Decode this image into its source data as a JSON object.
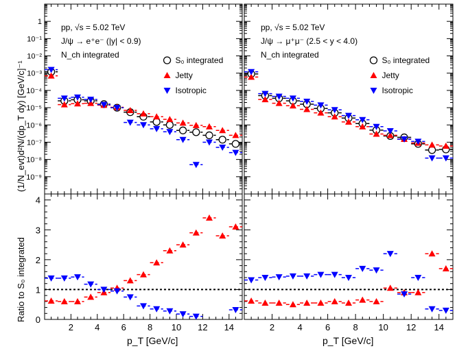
{
  "figure": {
    "ylabel_top": "(1/N_evt)d²N/(dp_T dy) [GeV/c]⁻¹",
    "ylabel_bottom": "Ratio to S₀ integrated",
    "xlabel": "p_T [GeV/c]"
  },
  "colors": {
    "integrated": "#000000",
    "jetty": "#ff0000",
    "isotropic": "#0000ff"
  },
  "legend": {
    "integrated": "S₀ integrated",
    "jetty": "Jetty",
    "isotropic": "Isotropic"
  },
  "chart_data": [
    {
      "type": "scatter",
      "panel": "top-left",
      "annotations": [
        "pp, √s = 5.02 TeV",
        "J/ψ → e⁺e⁻ (|y| < 0.9)",
        "N_ch integrated"
      ],
      "x_ticks": [
        2,
        4,
        6,
        8,
        10,
        12,
        14
      ],
      "y_ticks_labels": [
        "10⁻⁹",
        "10⁻⁸",
        "10⁻⁷",
        "10⁻⁶",
        "10⁻⁵",
        "10⁻⁴",
        "10⁻³",
        "10⁻²",
        "10⁻¹",
        "1"
      ],
      "xlim": [
        0,
        15
      ],
      "ylim": [
        1e-10,
        10
      ],
      "yscale": "log",
      "series": [
        {
          "name": "S₀ integrated",
          "marker": "open-circle",
          "x": [
            0.5,
            1.5,
            2.5,
            3.5,
            4.5,
            5.5,
            6.5,
            7.5,
            8.5,
            9.5,
            10.5,
            11.5,
            12.5,
            13.5,
            14.5
          ],
          "y": [
            0.0012,
            2.5e-05,
            2.9e-05,
            2.5e-05,
            1.6e-05,
            1e-05,
            5.5e-06,
            3e-06,
            1.5e-06,
            1e-06,
            4.8e-07,
            3.8e-07,
            2.5e-07,
            1.4e-07,
            8e-08
          ]
        },
        {
          "name": "Jetty",
          "marker": "triangle-up",
          "x": [
            0.5,
            1.5,
            2.5,
            3.5,
            4.5,
            5.5,
            6.5,
            7.5,
            8.5,
            9.5,
            10.5,
            11.5,
            12.5,
            13.5,
            14.5
          ],
          "y": [
            0.0007,
            1.5e-05,
            1.7e-05,
            1.8e-05,
            1.4e-05,
            1.05e-05,
            7e-06,
            4.5e-06,
            3e-06,
            2.1e-06,
            1.3e-06,
            9.5e-07,
            8e-07,
            4.8e-07,
            2.5e-07
          ]
        },
        {
          "name": "Isotropic",
          "marker": "triangle-down",
          "x": [
            0.5,
            1.5,
            2.5,
            3.5,
            4.5,
            5.5,
            6.5,
            7.5,
            8.5,
            9.5,
            10.5,
            11.5,
            12.5,
            13.5,
            14.5
          ],
          "y": [
            0.0016,
            3.5e-05,
            4e-05,
            3e-05,
            1.5e-05,
            1e-05,
            1.4e-06,
            1e-06,
            6e-07,
            4e-07,
            1.4e-07,
            5e-09,
            1e-07,
            5e-08,
            2.5e-08
          ]
        }
      ]
    },
    {
      "type": "scatter",
      "panel": "top-right",
      "annotations": [
        "pp, √s = 5.02 TeV",
        "J/ψ → μ⁺μ⁻ (2.5 < y < 4.0)",
        "N_ch integrated"
      ],
      "x_ticks": [
        2,
        4,
        6,
        8,
        10,
        12,
        14
      ],
      "xlim": [
        0,
        15
      ],
      "ylim": [
        1e-10,
        10
      ],
      "yscale": "log",
      "series": [
        {
          "name": "S₀ integrated",
          "marker": "open-circle",
          "x": [
            0.5,
            1.5,
            2.5,
            3.5,
            4.5,
            5.5,
            6.5,
            7.5,
            8.5,
            9.5,
            10.5,
            11.5,
            12.5,
            13.5,
            14.5
          ],
          "y": [
            0.0009,
            5e-05,
            3.5e-05,
            2.5e-05,
            1.6e-05,
            9e-06,
            5e-06,
            2.5e-06,
            1.2e-06,
            5e-07,
            2.3e-07,
            1.9e-07,
            8e-08,
            3.5e-08,
            3.8e-08
          ]
        },
        {
          "name": "Jetty",
          "marker": "triangle-up",
          "x": [
            0.5,
            1.5,
            2.5,
            3.5,
            4.5,
            5.5,
            6.5,
            7.5,
            8.5,
            9.5,
            10.5,
            11.5,
            12.5,
            13.5,
            14.5
          ],
          "y": [
            0.0006,
            3e-05,
            1.8e-05,
            1.3e-05,
            8e-06,
            5e-06,
            3e-06,
            1.5e-06,
            8e-07,
            3e-07,
            2.5e-07,
            1.5e-07,
            9e-08,
            7e-08,
            6e-08
          ]
        },
        {
          "name": "Isotropic",
          "marker": "triangle-down",
          "x": [
            0.5,
            1.5,
            2.5,
            3.5,
            4.5,
            5.5,
            6.5,
            7.5,
            8.5,
            9.5,
            10.5,
            11.5,
            12.5,
            13.5,
            14.5
          ],
          "y": [
            0.0012,
            6.5e-05,
            4.5e-05,
            3.5e-05,
            2.3e-05,
            1.4e-05,
            7.5e-06,
            3.5e-06,
            2e-06,
            8e-07,
            4.5e-07,
            1.5e-07,
            1.1e-07,
            1.2e-08,
            1.2e-08
          ]
        }
      ]
    },
    {
      "type": "scatter",
      "panel": "bottom-left",
      "x_ticks": [
        2,
        4,
        6,
        8,
        10,
        12,
        14
      ],
      "y_ticks": [
        0,
        1,
        2,
        3,
        4
      ],
      "xlim": [
        0,
        15
      ],
      "ylim": [
        0,
        4.2
      ],
      "reference_line": 1,
      "series": [
        {
          "name": "Jetty",
          "marker": "triangle-up",
          "x": [
            0.5,
            1.5,
            2.5,
            3.5,
            4.5,
            5.5,
            6.5,
            7.5,
            8.5,
            9.5,
            10.5,
            11.5,
            12.5,
            13.5,
            14.5
          ],
          "y": [
            0.62,
            0.6,
            0.6,
            0.75,
            0.9,
            1.05,
            1.3,
            1.5,
            1.9,
            2.3,
            2.5,
            2.9,
            3.4,
            2.8,
            3.1
          ]
        },
        {
          "name": "Isotropic",
          "marker": "triangle-down",
          "x": [
            0.5,
            1.5,
            2.5,
            3.5,
            4.5,
            5.5,
            6.5,
            7.5,
            8.5,
            9.5,
            10.5,
            11.5,
            12.5,
            13.5,
            14.5
          ],
          "y": [
            1.38,
            1.38,
            1.42,
            1.18,
            1.0,
            0.95,
            0.75,
            0.45,
            0.35,
            0.28,
            0.18,
            0.1,
            null,
            null,
            0.32
          ]
        }
      ]
    },
    {
      "type": "scatter",
      "panel": "bottom-right",
      "x_ticks": [
        2,
        4,
        6,
        8,
        10,
        12,
        14
      ],
      "xlim": [
        0,
        15
      ],
      "ylim": [
        0,
        4.2
      ],
      "reference_line": 1,
      "series": [
        {
          "name": "Jetty",
          "marker": "triangle-up",
          "x": [
            0.5,
            1.5,
            2.5,
            3.5,
            4.5,
            5.5,
            6.5,
            7.5,
            8.5,
            9.5,
            10.5,
            11.5,
            12.5,
            13.5,
            14.5
          ],
          "y": [
            0.62,
            0.55,
            0.55,
            0.5,
            0.55,
            0.55,
            0.6,
            0.55,
            0.65,
            0.6,
            1.05,
            0.9,
            0.9,
            2.2,
            1.7
          ]
        },
        {
          "name": "Isotropic",
          "marker": "triangle-down",
          "x": [
            0.5,
            1.5,
            2.5,
            3.5,
            4.5,
            5.5,
            6.5,
            7.5,
            8.5,
            9.5,
            10.5,
            11.5,
            12.5,
            13.5,
            14.5
          ],
          "y": [
            1.32,
            1.4,
            1.42,
            1.45,
            1.45,
            1.5,
            1.5,
            1.4,
            1.7,
            1.65,
            2.2,
            0.85,
            1.4,
            0.35,
            0.3
          ]
        }
      ]
    }
  ]
}
